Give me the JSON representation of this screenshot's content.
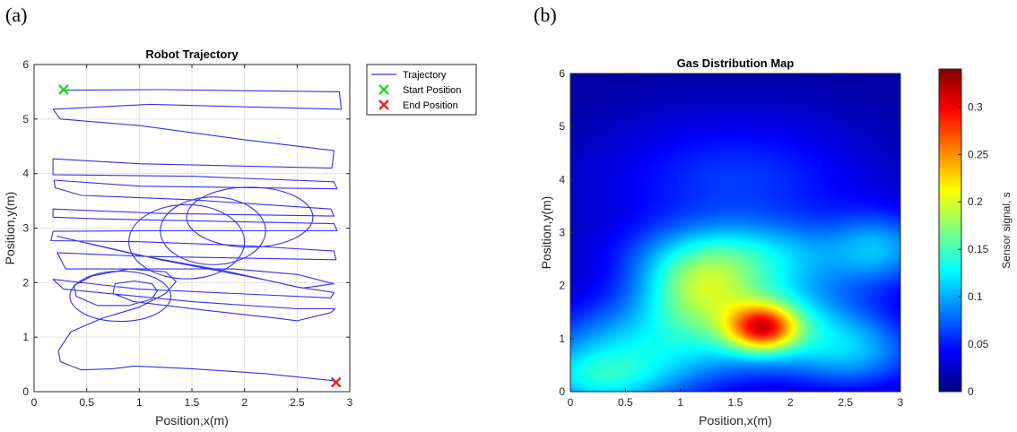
{
  "panel_labels": [
    "(a)",
    "(b)"
  ],
  "chart_data": [
    {
      "type": "line",
      "title": "Robot Trajectory",
      "xlabel": "Position,x(m)",
      "ylabel": "Position,y(m)",
      "xlim": [
        0,
        3
      ],
      "ylim": [
        0,
        6
      ],
      "xticks": [
        0,
        0.5,
        1,
        1.5,
        2,
        2.5,
        3
      ],
      "yticks": [
        0,
        1,
        2,
        3,
        4,
        5,
        6
      ],
      "grid": true,
      "legend_position": "outside-top-right",
      "series": [
        {
          "name": "Trajectory",
          "color": "#3333e6",
          "points": [
            [
              0.28,
              5.53
            ],
            [
              1.2,
              5.54
            ],
            [
              2.9,
              5.5
            ],
            [
              2.92,
              5.18
            ],
            [
              1.1,
              5.27
            ],
            [
              0.18,
              5.18
            ],
            [
              0.25,
              5.0
            ],
            [
              1.0,
              4.88
            ],
            [
              2.0,
              4.62
            ],
            [
              2.85,
              4.42
            ],
            [
              2.83,
              4.1
            ],
            [
              1.0,
              4.18
            ],
            [
              0.18,
              4.27
            ],
            [
              0.18,
              3.98
            ],
            [
              1.5,
              3.95
            ],
            [
              2.85,
              3.85
            ],
            [
              2.88,
              3.72
            ],
            [
              1.0,
              3.77
            ],
            [
              0.19,
              3.88
            ],
            [
              0.2,
              3.74
            ],
            [
              0.45,
              3.6
            ],
            [
              1.5,
              3.52
            ],
            [
              2.82,
              3.35
            ],
            [
              2.85,
              3.22
            ],
            [
              1.2,
              3.27
            ],
            [
              0.18,
              3.35
            ],
            [
              0.18,
              3.2
            ],
            [
              0.6,
              3.17
            ],
            [
              2.85,
              3.08
            ],
            [
              2.88,
              2.95
            ],
            [
              1.0,
              2.95
            ],
            [
              0.18,
              2.94
            ],
            [
              0.16,
              2.77
            ],
            [
              1.0,
              2.75
            ],
            [
              2.0,
              2.68
            ],
            [
              2.85,
              2.58
            ],
            [
              2.87,
              2.42
            ],
            [
              1.05,
              2.48
            ],
            [
              0.22,
              2.55
            ],
            [
              0.3,
              2.25
            ],
            [
              1.0,
              2.25
            ],
            [
              1.9,
              2.25
            ],
            [
              2.5,
              2.15
            ],
            [
              2.85,
              1.98
            ],
            [
              2.55,
              1.9
            ],
            [
              2.2,
              2.05
            ],
            [
              1.2,
              2.42
            ],
            [
              0.22,
              2.85
            ],
            [
              1.0,
              2.5
            ],
            [
              1.8,
              2.22
            ],
            [
              2.5,
              1.92
            ],
            [
              2.85,
              1.82
            ],
            [
              2.82,
              1.72
            ],
            [
              1.0,
              1.88
            ],
            [
              0.18,
              2.06
            ],
            [
              0.28,
              1.88
            ],
            [
              1.5,
              1.65
            ],
            [
              2.5,
              1.52
            ],
            [
              2.86,
              1.52
            ],
            [
              2.82,
              1.45
            ],
            [
              2.5,
              1.3
            ],
            [
              2.3,
              1.35
            ],
            [
              1.6,
              1.5
            ],
            [
              0.95,
              1.65
            ],
            [
              0.75,
              1.8
            ],
            [
              0.77,
              1.98
            ],
            [
              0.95,
              2.03
            ],
            [
              1.12,
              1.98
            ],
            [
              1.17,
              1.85
            ],
            [
              1.12,
              1.7
            ],
            [
              0.9,
              1.58
            ],
            [
              0.6,
              1.58
            ],
            [
              0.4,
              1.75
            ],
            [
              0.38,
              1.95
            ],
            [
              0.55,
              2.12
            ],
            [
              0.9,
              2.25
            ],
            [
              1.25,
              2.2
            ],
            [
              1.35,
              2.02
            ],
            [
              1.25,
              1.8
            ],
            [
              1.0,
              1.55
            ],
            [
              0.65,
              1.35
            ],
            [
              0.35,
              1.1
            ],
            [
              0.23,
              0.75
            ],
            [
              0.25,
              0.55
            ],
            [
              0.45,
              0.4
            ],
            [
              0.75,
              0.42
            ],
            [
              0.95,
              0.47
            ],
            [
              1.5,
              0.42
            ],
            [
              2.2,
              0.33
            ],
            [
              2.85,
              0.2
            ],
            [
              2.85,
              0.17
            ]
          ]
        }
      ],
      "start": {
        "name": "Start Position",
        "x": 0.28,
        "y": 5.54,
        "color": "#22dd22"
      },
      "end": {
        "name": "End Position",
        "x": 2.87,
        "y": 0.17,
        "color": "#ee2222"
      },
      "loops": [
        {
          "cx": 1.45,
          "cy": 2.75,
          "rx": 0.55,
          "ry": 0.68
        },
        {
          "cx": 0.82,
          "cy": 1.75,
          "rx": 0.48,
          "ry": 0.46
        },
        {
          "cx": 2.05,
          "cy": 3.2,
          "rx": 0.6,
          "ry": 0.55
        },
        {
          "cx": 1.7,
          "cy": 2.95,
          "rx": 0.5,
          "ry": 0.62
        }
      ]
    },
    {
      "type": "heatmap",
      "title": "Gas Distribution Map",
      "xlabel": "Position,x(m)",
      "ylabel": "Position,y(m)",
      "xlim": [
        0,
        3
      ],
      "ylim": [
        0,
        6
      ],
      "xticks": [
        0,
        0.5,
        1,
        1.5,
        2,
        2.5,
        3
      ],
      "yticks": [
        0,
        1,
        2,
        3,
        4,
        5,
        6
      ],
      "colorbar_label": "Sensor signal, s",
      "colorbar_ticks": [
        0,
        0.05,
        0.1,
        0.15,
        0.2,
        0.25,
        0.3
      ],
      "value_range": [
        0,
        0.34
      ],
      "colormap": "jet",
      "background_value": 0.01,
      "sources": [
        {
          "x": 1.75,
          "y": 1.2,
          "amp": 0.17,
          "sx": 0.22,
          "sy": 0.3
        },
        {
          "x": 1.4,
          "y": 1.6,
          "amp": 0.09,
          "sx": 0.55,
          "sy": 0.75
        },
        {
          "x": 1.15,
          "y": 2.0,
          "amp": 0.07,
          "sx": 0.35,
          "sy": 0.5
        },
        {
          "x": 2.1,
          "y": 1.3,
          "amp": 0.06,
          "sx": 0.55,
          "sy": 0.6
        },
        {
          "x": 0.5,
          "y": 0.7,
          "amp": 0.09,
          "sx": 0.65,
          "sy": 0.7
        },
        {
          "x": 0.2,
          "y": 0.2,
          "amp": 0.06,
          "sx": 0.45,
          "sy": 0.4
        },
        {
          "x": 2.6,
          "y": 0.7,
          "amp": 0.07,
          "sx": 0.45,
          "sy": 0.5
        },
        {
          "x": 2.85,
          "y": 2.7,
          "amp": 0.07,
          "sx": 0.35,
          "sy": 0.5
        },
        {
          "x": 1.6,
          "y": 2.6,
          "amp": 0.07,
          "sx": 0.75,
          "sy": 0.45
        },
        {
          "x": 1.5,
          "y": 4.0,
          "amp": 0.05,
          "sx": 0.9,
          "sy": 0.9
        }
      ]
    }
  ]
}
